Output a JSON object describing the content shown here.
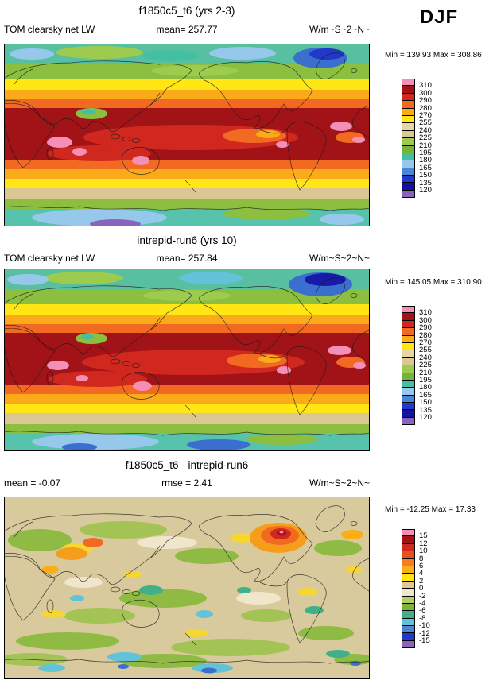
{
  "header": {
    "season_label": "DJF"
  },
  "panels": [
    {
      "title": "f1850c5_t6 (yrs 2-3)",
      "left_label": "TOM clearsky net LW",
      "center_label": "mean= 257.77",
      "right_label": "W/m~S~2~N~",
      "minmax_label": "Min = 139.93 Max = 308.86",
      "colorbar": {
        "tick_labels": [
          "310",
          "300",
          "290",
          "280",
          "270",
          "255",
          "240",
          "225",
          "210",
          "195",
          "180",
          "165",
          "150",
          "135",
          "120"
        ],
        "colors": [
          "#f48fb8",
          "#a21318",
          "#d0281e",
          "#f26a21",
          "#fbaa19",
          "#ffe614",
          "#e7d5a6",
          "#dcc794",
          "#9ccb4e",
          "#77b33a",
          "#45bfa2",
          "#96c8ec",
          "#4a86d8",
          "#2238c8",
          "#1212a0",
          "#8a63c0"
        ]
      }
    },
    {
      "title": "intrepid-run6 (yrs 10)",
      "left_label": "TOM clearsky net LW",
      "center_label": "mean= 257.84",
      "right_label": "W/m~S~2~N~",
      "minmax_label": "Min = 145.05 Max = 310.90",
      "colorbar": {
        "tick_labels": [
          "310",
          "300",
          "290",
          "280",
          "270",
          "255",
          "240",
          "225",
          "210",
          "195",
          "180",
          "165",
          "150",
          "135",
          "120"
        ],
        "colors": [
          "#f48fb8",
          "#a21318",
          "#d0281e",
          "#f26a21",
          "#fbaa19",
          "#ffe614",
          "#e7d5a6",
          "#dcc794",
          "#9ccb4e",
          "#77b33a",
          "#45bfa2",
          "#96c8ec",
          "#4a86d8",
          "#2238c8",
          "#1212a0",
          "#8a63c0"
        ]
      }
    },
    {
      "title": "f1850c5_t6 - intrepid-run6",
      "left_label": "mean = -0.07",
      "center_label": "rmse =  2.41",
      "right_label": "W/m~S~2~N~",
      "minmax_label": "Min = -12.25 Max =  17.33",
      "colorbar": {
        "tick_labels": [
          "15",
          "12",
          "10",
          "8",
          "6",
          "4",
          "2",
          "0",
          "-2",
          "-4",
          "-6",
          "-8",
          "-10",
          "-12",
          "-15"
        ],
        "colors": [
          "#f48fb8",
          "#a21318",
          "#d0281e",
          "#ea4f1e",
          "#f57e20",
          "#fbae17",
          "#ffe614",
          "#e0c894",
          "#f0e8cc",
          "#b4cf66",
          "#7fb33c",
          "#3fb08a",
          "#62c3d8",
          "#4a86d8",
          "#2238c8",
          "#8a63c0"
        ]
      }
    }
  ],
  "chart_data": [
    {
      "type": "heatmap",
      "panel": "top",
      "title": "f1850c5_t6 (yrs 2-3)",
      "variable": "TOM clearsky net LW",
      "season": "DJF",
      "units": "W/m~S~2~N~",
      "stats": {
        "mean": 257.77,
        "min": 139.93,
        "max": 308.86
      },
      "contour_levels": [
        120,
        135,
        150,
        165,
        180,
        195,
        210,
        225,
        240,
        255,
        270,
        280,
        290,
        300,
        310
      ],
      "projection": "global latitude-longitude map",
      "colorbar_position": "right"
    },
    {
      "type": "heatmap",
      "panel": "middle",
      "title": "intrepid-run6 (yrs 10)",
      "variable": "TOM clearsky net LW",
      "season": "DJF",
      "units": "W/m~S~2~N~",
      "stats": {
        "mean": 257.84,
        "min": 145.05,
        "max": 310.9
      },
      "contour_levels": [
        120,
        135,
        150,
        165,
        180,
        195,
        210,
        225,
        240,
        255,
        270,
        280,
        290,
        300,
        310
      ],
      "projection": "global latitude-longitude map",
      "colorbar_position": "right"
    },
    {
      "type": "heatmap",
      "panel": "bottom",
      "title": "f1850c5_t6 - intrepid-run6",
      "variable": "TOM clearsky net LW difference",
      "season": "DJF",
      "units": "W/m~S~2~N~",
      "stats": {
        "mean": -0.07,
        "rmse": 2.41,
        "min": -12.25,
        "max": 17.33
      },
      "contour_levels": [
        -15,
        -12,
        -10,
        -8,
        -6,
        -4,
        -2,
        0,
        2,
        4,
        6,
        8,
        10,
        12,
        15
      ],
      "projection": "global latitude-longitude map",
      "colorbar_position": "right"
    }
  ]
}
